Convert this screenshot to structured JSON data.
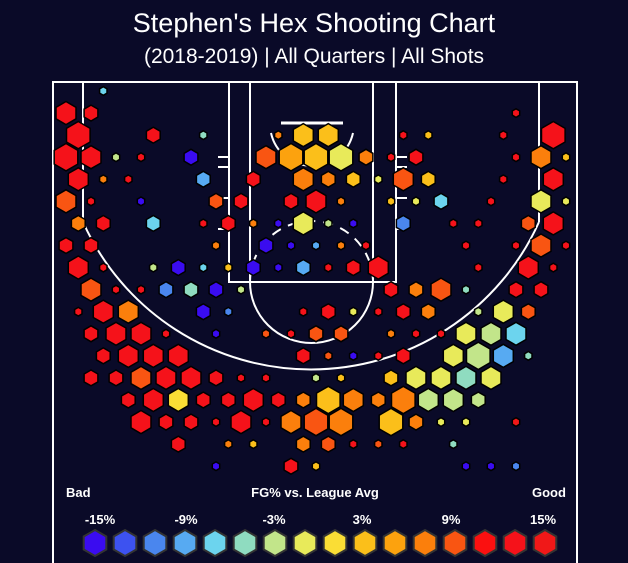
{
  "title": "Stephen's Hex Shooting Chart",
  "subtitle": "(2018-2019) | All Quarters | All Shots",
  "legend": {
    "bad_label": "Bad",
    "title": "FG% vs. League Avg",
    "good_label": "Good",
    "tick_labels": [
      "-15%",
      "-9%",
      "-3%",
      "3%",
      "9%",
      "15%"
    ],
    "bin_values": [
      -15,
      -13,
      -11,
      -9,
      -7,
      -5,
      -3,
      -1,
      1,
      3,
      5,
      7,
      9,
      11,
      13,
      15
    ],
    "colors": [
      "#3a0cf0",
      "#3d52f0",
      "#4a86ee",
      "#57aaf2",
      "#6cd4ee",
      "#8fdcc0",
      "#c2e58a",
      "#e8ea5a",
      "#fadd35",
      "#fbbf1a",
      "#fca20e",
      "#fb7f0c",
      "#f95512",
      "#fb1010",
      "#f5121a",
      "#f01818"
    ]
  },
  "chart_data": {
    "type": "heatmap",
    "title": "Stephen's Hex Shooting Chart",
    "subtitle": "(2018-2019) | All Quarters | All Shots",
    "color_metric": "FG% vs. League Avg",
    "color_range": [
      -15,
      15
    ],
    "hex_fields": [
      "row",
      "col",
      "fg_diff_pct",
      "relative_frequency"
    ],
    "hexes": [
      [
        0,
        1,
        -7,
        0.3
      ],
      [
        1,
        0,
        13,
        0.8
      ],
      [
        1,
        1,
        13,
        0.55
      ],
      [
        1,
        18,
        13,
        0.3
      ],
      [
        2,
        0,
        13,
        0.95
      ],
      [
        2,
        3,
        13,
        0.55
      ],
      [
        2,
        5,
        -5,
        0.3
      ],
      [
        2,
        8,
        7,
        0.3
      ],
      [
        2,
        9,
        3,
        0.8
      ],
      [
        2,
        10,
        3,
        0.8
      ],
      [
        2,
        13,
        13,
        0.3
      ],
      [
        2,
        14,
        3,
        0.3
      ],
      [
        2,
        17,
        13,
        0.3
      ],
      [
        2,
        19,
        13,
        0.95
      ],
      [
        3,
        0,
        13,
        0.95
      ],
      [
        3,
        1,
        13,
        0.8
      ],
      [
        3,
        2,
        -3,
        0.3
      ],
      [
        3,
        3,
        13,
        0.3
      ],
      [
        3,
        5,
        -15,
        0.55
      ],
      [
        3,
        8,
        9,
        0.8
      ],
      [
        3,
        9,
        5,
        0.95
      ],
      [
        3,
        10,
        3,
        0.95
      ],
      [
        3,
        11,
        -1,
        0.95
      ],
      [
        3,
        12,
        7,
        0.55
      ],
      [
        3,
        13,
        13,
        0.3
      ],
      [
        3,
        14,
        13,
        0.55
      ],
      [
        3,
        18,
        13,
        0.3
      ],
      [
        3,
        19,
        7,
        0.8
      ],
      [
        3,
        20,
        3,
        0.3
      ],
      [
        4,
        0,
        13,
        0.8
      ],
      [
        4,
        1,
        7,
        0.3
      ],
      [
        4,
        2,
        13,
        0.3
      ],
      [
        4,
        5,
        -9,
        0.55
      ],
      [
        4,
        7,
        13,
        0.55
      ],
      [
        4,
        9,
        7,
        0.8
      ],
      [
        4,
        10,
        7,
        0.55
      ],
      [
        4,
        11,
        3,
        0.55
      ],
      [
        4,
        12,
        -1,
        0.3
      ],
      [
        4,
        13,
        9,
        0.8
      ],
      [
        4,
        14,
        3,
        0.55
      ],
      [
        4,
        17,
        13,
        0.3
      ],
      [
        4,
        19,
        13,
        0.8
      ],
      [
        5,
        0,
        9,
        0.8
      ],
      [
        5,
        1,
        13,
        0.3
      ],
      [
        5,
        3,
        -15,
        0.3
      ],
      [
        5,
        6,
        9,
        0.55
      ],
      [
        5,
        7,
        13,
        0.55
      ],
      [
        5,
        9,
        13,
        0.55
      ],
      [
        5,
        10,
        13,
        0.8
      ],
      [
        5,
        11,
        7,
        0.3
      ],
      [
        5,
        13,
        3,
        0.3
      ],
      [
        5,
        14,
        -1,
        0.3
      ],
      [
        5,
        15,
        -7,
        0.55
      ],
      [
        5,
        17,
        13,
        0.3
      ],
      [
        5,
        19,
        -1,
        0.8
      ],
      [
        5,
        20,
        -1,
        0.3
      ],
      [
        6,
        0,
        7,
        0.55
      ],
      [
        6,
        1,
        13,
        0.55
      ],
      [
        6,
        3,
        -7,
        0.55
      ],
      [
        6,
        5,
        13,
        0.3
      ],
      [
        6,
        6,
        13,
        0.55
      ],
      [
        6,
        7,
        7,
        0.3
      ],
      [
        6,
        8,
        -15,
        0.3
      ],
      [
        6,
        9,
        -1,
        0.8
      ],
      [
        6,
        10,
        -3,
        0.3
      ],
      [
        6,
        11,
        -15,
        0.3
      ],
      [
        6,
        13,
        -11,
        0.55
      ],
      [
        6,
        15,
        13,
        0.3
      ],
      [
        6,
        16,
        13,
        0.3
      ],
      [
        6,
        18,
        9,
        0.55
      ],
      [
        6,
        19,
        13,
        0.8
      ],
      [
        7,
        0,
        13,
        0.55
      ],
      [
        7,
        1,
        13,
        0.55
      ],
      [
        7,
        6,
        7,
        0.3
      ],
      [
        7,
        8,
        -15,
        0.55
      ],
      [
        7,
        9,
        -15,
        0.3
      ],
      [
        7,
        10,
        -9,
        0.3
      ],
      [
        7,
        11,
        7,
        0.3
      ],
      [
        7,
        12,
        13,
        0.3
      ],
      [
        7,
        16,
        13,
        0.3
      ],
      [
        7,
        18,
        13,
        0.3
      ],
      [
        7,
        19,
        9,
        0.8
      ],
      [
        7,
        20,
        13,
        0.3
      ],
      [
        8,
        0,
        13,
        0.8
      ],
      [
        8,
        1,
        13,
        0.3
      ],
      [
        8,
        3,
        -3,
        0.3
      ],
      [
        8,
        4,
        -15,
        0.55
      ],
      [
        8,
        5,
        -7,
        0.3
      ],
      [
        8,
        6,
        3,
        0.3
      ],
      [
        8,
        7,
        -15,
        0.55
      ],
      [
        8,
        8,
        -15,
        0.3
      ],
      [
        8,
        9,
        -9,
        0.55
      ],
      [
        8,
        10,
        13,
        0.3
      ],
      [
        8,
        11,
        13,
        0.55
      ],
      [
        8,
        12,
        13,
        0.8
      ],
      [
        8,
        16,
        13,
        0.3
      ],
      [
        8,
        18,
        13,
        0.8
      ],
      [
        8,
        19,
        13,
        0.3
      ],
      [
        9,
        1,
        9,
        0.8
      ],
      [
        9,
        2,
        13,
        0.3
      ],
      [
        9,
        3,
        13,
        0.3
      ],
      [
        9,
        4,
        -11,
        0.55
      ],
      [
        9,
        5,
        -5,
        0.55
      ],
      [
        9,
        6,
        -15,
        0.55
      ],
      [
        9,
        7,
        -3,
        0.3
      ],
      [
        9,
        13,
        13,
        0.55
      ],
      [
        9,
        14,
        7,
        0.55
      ],
      [
        9,
        15,
        9,
        0.8
      ],
      [
        9,
        16,
        -5,
        0.3
      ],
      [
        9,
        18,
        13,
        0.55
      ],
      [
        9,
        19,
        13,
        0.55
      ],
      [
        10,
        0,
        13,
        0.3
      ],
      [
        10,
        1,
        13,
        0.8
      ],
      [
        10,
        2,
        7,
        0.8
      ],
      [
        10,
        5,
        -15,
        0.55
      ],
      [
        10,
        6,
        -11,
        0.3
      ],
      [
        10,
        9,
        13,
        0.3
      ],
      [
        10,
        10,
        13,
        0.55
      ],
      [
        10,
        11,
        -1,
        0.3
      ],
      [
        10,
        12,
        13,
        0.3
      ],
      [
        10,
        13,
        13,
        0.55
      ],
      [
        10,
        14,
        7,
        0.55
      ],
      [
        10,
        16,
        -3,
        0.3
      ],
      [
        10,
        17,
        -1,
        0.8
      ],
      [
        10,
        18,
        9,
        0.55
      ],
      [
        11,
        1,
        13,
        0.55
      ],
      [
        11,
        2,
        13,
        0.8
      ],
      [
        11,
        3,
        13,
        0.8
      ],
      [
        11,
        4,
        13,
        0.3
      ],
      [
        11,
        6,
        -15,
        0.3
      ],
      [
        11,
        8,
        9,
        0.3
      ],
      [
        11,
        9,
        13,
        0.3
      ],
      [
        11,
        10,
        9,
        0.55
      ],
      [
        11,
        11,
        9,
        0.55
      ],
      [
        11,
        13,
        7,
        0.3
      ],
      [
        11,
        14,
        13,
        0.3
      ],
      [
        11,
        15,
        13,
        0.3
      ],
      [
        11,
        16,
        -1,
        0.8
      ],
      [
        11,
        17,
        -3,
        0.8
      ],
      [
        11,
        18,
        -7,
        0.8
      ],
      [
        12,
        1,
        13,
        0.55
      ],
      [
        12,
        2,
        13,
        0.8
      ],
      [
        12,
        3,
        13,
        0.8
      ],
      [
        12,
        4,
        13,
        0.8
      ],
      [
        12,
        9,
        13,
        0.55
      ],
      [
        12,
        10,
        9,
        0.3
      ],
      [
        12,
        11,
        -15,
        0.3
      ],
      [
        12,
        12,
        13,
        0.3
      ],
      [
        12,
        13,
        13,
        0.55
      ],
      [
        12,
        15,
        -1,
        0.8
      ],
      [
        12,
        16,
        -3,
        0.95
      ],
      [
        12,
        17,
        -9,
        0.8
      ],
      [
        12,
        18,
        -5,
        0.3
      ],
      [
        13,
        1,
        13,
        0.55
      ],
      [
        13,
        2,
        13,
        0.55
      ],
      [
        13,
        3,
        9,
        0.8
      ],
      [
        13,
        4,
        13,
        0.8
      ],
      [
        13,
        5,
        13,
        0.8
      ],
      [
        13,
        6,
        13,
        0.55
      ],
      [
        13,
        7,
        13,
        0.3
      ],
      [
        13,
        8,
        13,
        0.3
      ],
      [
        13,
        10,
        -3,
        0.3
      ],
      [
        13,
        11,
        3,
        0.3
      ],
      [
        13,
        13,
        3,
        0.55
      ],
      [
        13,
        14,
        -1,
        0.8
      ],
      [
        13,
        15,
        -1,
        0.8
      ],
      [
        13,
        16,
        -5,
        0.8
      ],
      [
        13,
        17,
        -1,
        0.8
      ],
      [
        14,
        2,
        13,
        0.55
      ],
      [
        14,
        3,
        13,
        0.8
      ],
      [
        14,
        4,
        1,
        0.8
      ],
      [
        14,
        5,
        13,
        0.55
      ],
      [
        14,
        6,
        13,
        0.55
      ],
      [
        14,
        7,
        13,
        0.8
      ],
      [
        14,
        8,
        13,
        0.55
      ],
      [
        14,
        9,
        7,
        0.55
      ],
      [
        14,
        10,
        3,
        0.95
      ],
      [
        14,
        11,
        7,
        0.8
      ],
      [
        14,
        12,
        7,
        0.55
      ],
      [
        14,
        13,
        7,
        0.95
      ],
      [
        14,
        14,
        -3,
        0.8
      ],
      [
        14,
        15,
        -3,
        0.8
      ],
      [
        14,
        16,
        -3,
        0.55
      ],
      [
        15,
        3,
        13,
        0.8
      ],
      [
        15,
        4,
        13,
        0.55
      ],
      [
        15,
        5,
        13,
        0.55
      ],
      [
        15,
        6,
        13,
        0.3
      ],
      [
        15,
        7,
        13,
        0.8
      ],
      [
        15,
        8,
        13,
        0.3
      ],
      [
        15,
        9,
        7,
        0.8
      ],
      [
        15,
        10,
        9,
        0.95
      ],
      [
        15,
        11,
        7,
        0.95
      ],
      [
        15,
        13,
        3,
        0.95
      ],
      [
        15,
        14,
        7,
        0.55
      ],
      [
        15,
        15,
        -1,
        0.3
      ],
      [
        15,
        16,
        -1,
        0.3
      ],
      [
        15,
        18,
        15,
        0.3
      ],
      [
        16,
        4,
        13,
        0.55
      ],
      [
        16,
        6,
        7,
        0.3
      ],
      [
        16,
        7,
        3,
        0.3
      ],
      [
        16,
        9,
        7,
        0.55
      ],
      [
        16,
        10,
        9,
        0.55
      ],
      [
        16,
        11,
        13,
        0.3
      ],
      [
        16,
        12,
        9,
        0.3
      ],
      [
        16,
        13,
        13,
        0.3
      ],
      [
        16,
        15,
        -5,
        0.3
      ],
      [
        17,
        6,
        -15,
        0.3
      ],
      [
        17,
        9,
        13,
        0.55
      ],
      [
        17,
        10,
        3,
        0.3
      ],
      [
        17,
        16,
        -15,
        0.3
      ],
      [
        17,
        17,
        -15,
        0.3
      ],
      [
        17,
        18,
        -11,
        0.3
      ]
    ]
  }
}
